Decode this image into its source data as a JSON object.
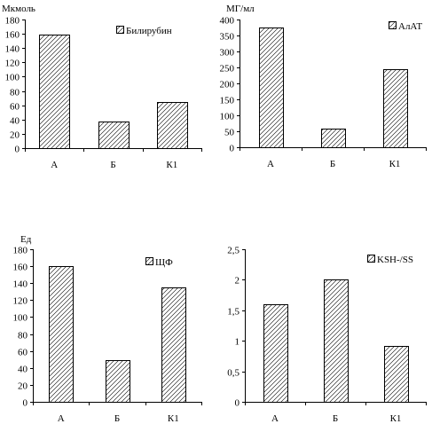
{
  "chart_data": [
    {
      "type": "bar",
      "unit_label": "Мкмоль",
      "categories": [
        "А",
        "Б",
        "К1"
      ],
      "series": [
        {
          "name": "Билирубин",
          "values": [
            159,
            37,
            65
          ]
        }
      ],
      "ylim": [
        0,
        180
      ],
      "yticks": [
        "0",
        "20",
        "40",
        "60",
        "80",
        "100",
        "120",
        "140",
        "160",
        "180"
      ],
      "legend_position": "top-right",
      "grid": false
    },
    {
      "type": "bar",
      "unit_label": "МГ/мл",
      "categories": [
        "А",
        "Б",
        "К1"
      ],
      "series": [
        {
          "name": "АлАТ",
          "values": [
            375,
            57,
            245
          ]
        }
      ],
      "ylim": [
        0,
        400
      ],
      "yticks": [
        "0",
        "50",
        "100",
        "150",
        "200",
        "250",
        "300",
        "350",
        "400"
      ],
      "legend_position": "top-right",
      "grid": false
    },
    {
      "type": "bar",
      "unit_label": "Ед",
      "categories": [
        "А",
        "Б",
        "К1"
      ],
      "series": [
        {
          "name": "ЩФ",
          "values": [
            160,
            49,
            135
          ]
        }
      ],
      "ylim": [
        0,
        180
      ],
      "yticks": [
        "0",
        "20",
        "40",
        "60",
        "80",
        "100",
        "120",
        "140",
        "160",
        "180"
      ],
      "legend_position": "top-right",
      "grid": false
    },
    {
      "type": "bar",
      "unit_label": "",
      "categories": [
        "А",
        "Б",
        "К1"
      ],
      "series": [
        {
          "name": "KSH-/SS",
          "values": [
            1.6,
            2.0,
            0.92
          ]
        }
      ],
      "ylim": [
        0,
        2.5
      ],
      "yticks": [
        "0",
        "0,5",
        "1",
        "1,5",
        "2",
        "2,5"
      ],
      "legend_position": "top-right",
      "grid": false
    }
  ]
}
